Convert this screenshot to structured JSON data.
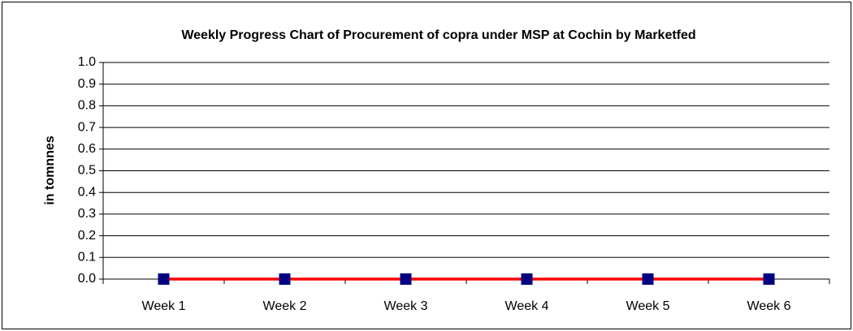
{
  "chart_data": {
    "type": "line",
    "title": "Weekly Progress Chart of Procurement of copra under MSP at Cochin by Marketfed",
    "ylabel": "in tomnnes",
    "categories": [
      "Week 1",
      "Week 2",
      "Week 3",
      "Week 4",
      "Week 5",
      "Week 6"
    ],
    "series": [
      {
        "color": "#ff0000",
        "marker_color": "#000080",
        "values": [
          0,
          0,
          0,
          0,
          0,
          0
        ]
      }
    ],
    "ylim": [
      0,
      1
    ],
    "yticks": [
      {
        "value": 0,
        "label": "0.0"
      },
      0.1,
      0.2,
      0.3,
      0.4,
      0.5,
      0.6,
      0.7,
      0.8,
      0.9,
      {
        "value": 1,
        "label": "1.0"
      }
    ],
    "grid": true
  }
}
